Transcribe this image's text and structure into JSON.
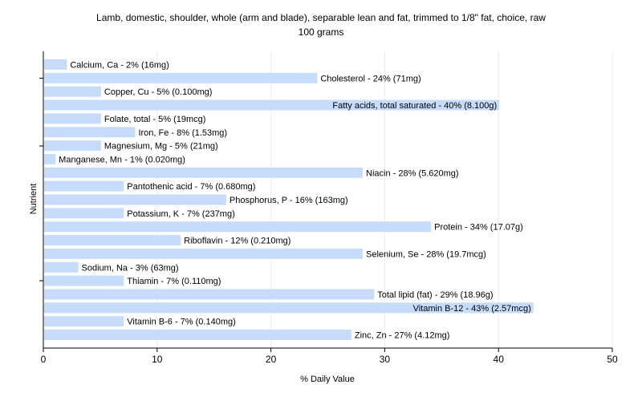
{
  "chart_data": {
    "type": "bar",
    "orientation": "horizontal",
    "title": "Lamb, domestic, shoulder, whole (arm and blade), separable lean and fat, trimmed to 1/8\" fat, choice, raw",
    "subtitle": "100 grams",
    "xlabel": "% Daily Value",
    "ylabel": "Nutrient",
    "xlim": [
      0,
      50
    ],
    "xticks": [
      "0",
      "10",
      "20",
      "30",
      "40",
      "50"
    ],
    "grid": true,
    "legend": "none",
    "bar_color": "#c6dcfa",
    "categories": [
      "Calcium, Ca",
      "Cholesterol",
      "Copper, Cu",
      "Fatty acids, total saturated",
      "Folate, total",
      "Iron, Fe",
      "Magnesium, Mg",
      "Manganese, Mn",
      "Niacin",
      "Pantothenic acid",
      "Phosphorus, P",
      "Potassium, K",
      "Protein",
      "Riboflavin",
      "Selenium, Se",
      "Sodium, Na",
      "Thiamin",
      "Total lipid (fat)",
      "Vitamin B-12",
      "Vitamin B-6",
      "Zinc, Zn"
    ],
    "values": [
      2,
      24,
      5,
      40,
      5,
      8,
      5,
      1,
      28,
      7,
      16,
      7,
      34,
      12,
      28,
      3,
      7,
      29,
      43,
      7,
      27
    ],
    "labels": [
      "Calcium, Ca - 2% (16mg)",
      "Cholesterol - 24% (71mg)",
      "Copper, Cu - 5% (0.100mg)",
      "Fatty acids, total saturated - 40% (8.100g)",
      "Folate, total - 5% (19mcg)",
      "Iron, Fe - 8% (1.53mg)",
      "Magnesium, Mg - 5% (21mg)",
      "Manganese, Mn - 1% (0.020mg)",
      "Niacin - 28% (5.620mg)",
      "Pantothenic acid - 7% (0.680mg)",
      "Phosphorus, P - 16% (163mg)",
      "Potassium, K - 7% (237mg)",
      "Protein - 34% (17.07g)",
      "Riboflavin - 12% (0.210mg)",
      "Selenium, Se - 28% (19.7mcg)",
      "Sodium, Na - 3% (63mg)",
      "Thiamin - 7% (0.110mg)",
      "Total lipid (fat) - 29% (18.96g)",
      "Vitamin B-12 - 43% (2.57mcg)",
      "Vitamin B-6 - 7% (0.140mg)",
      "Zinc, Zn - 27% (4.12mg)"
    ]
  }
}
